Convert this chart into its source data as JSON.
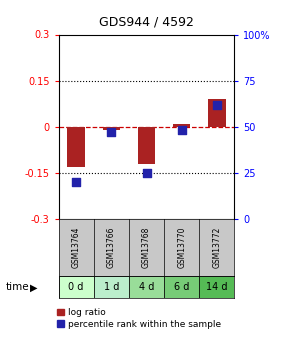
{
  "title": "GDS944 / 4592",
  "categories": [
    "GSM13764",
    "GSM13766",
    "GSM13768",
    "GSM13770",
    "GSM13772"
  ],
  "time_labels": [
    "0 d",
    "1 d",
    "4 d",
    "6 d",
    "14 d"
  ],
  "log_ratios": [
    -0.13,
    -0.01,
    -0.12,
    0.01,
    0.09
  ],
  "percentile_ranks": [
    20,
    47,
    25,
    48,
    62
  ],
  "ylim_left": [
    -0.3,
    0.3
  ],
  "ylim_right": [
    0,
    100
  ],
  "yticks_left": [
    -0.3,
    -0.15,
    0,
    0.15,
    0.3
  ],
  "yticks_right": [
    0,
    25,
    50,
    75,
    100
  ],
  "bar_color": "#AA2222",
  "dot_color": "#2222AA",
  "dashed_line_color": "#CC0000",
  "bg_color": "#FFFFFF",
  "header_bg": "#C8C8C8",
  "time_bg_colors": [
    "#CCFFCC",
    "#BBEECC",
    "#99DD99",
    "#77CC77",
    "#55BB55"
  ],
  "bar_width": 0.5,
  "dot_size": 40,
  "legend_lr_label": "log ratio",
  "legend_pr_label": "percentile rank within the sample"
}
